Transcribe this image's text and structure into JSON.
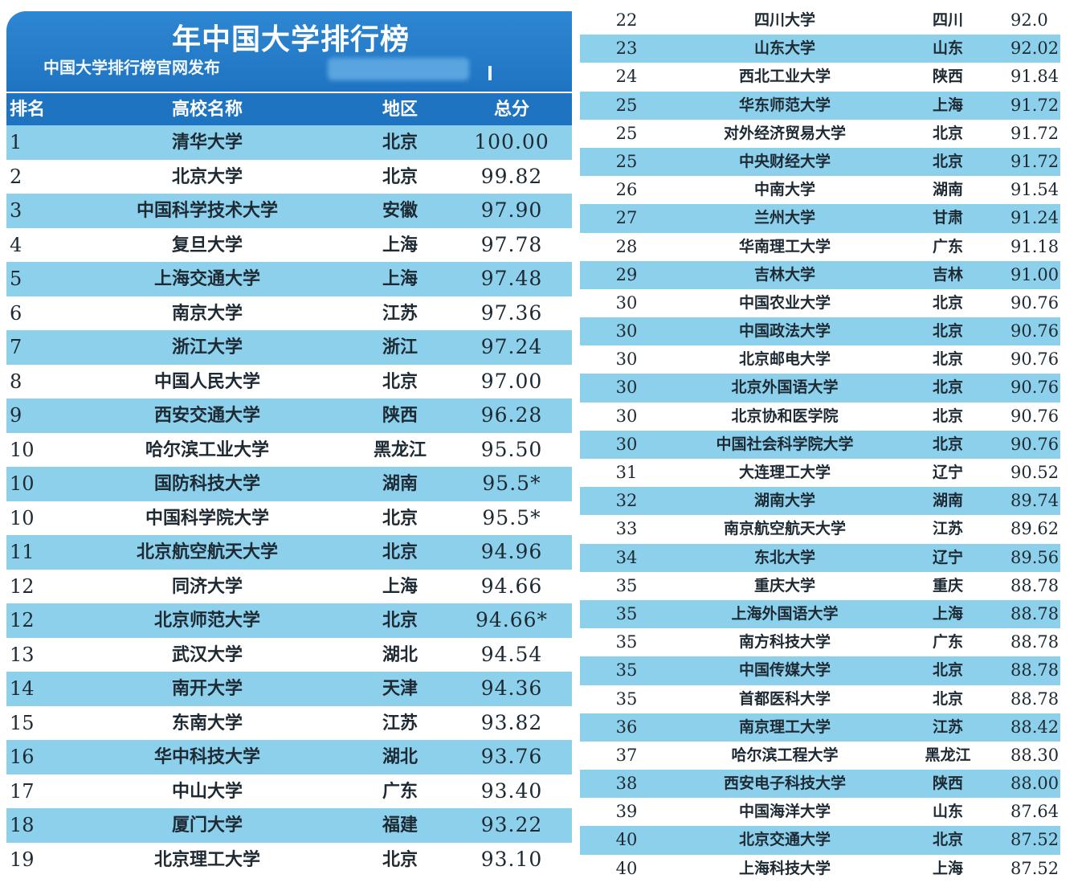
{
  "banner": {
    "title": "年中国大学排行榜",
    "subtitle": "中国大学排行榜官网发布"
  },
  "table_header": {
    "rank": "排名",
    "name": "高校名称",
    "region": "地区",
    "score": "总分"
  },
  "left_rows": [
    {
      "rank": "1",
      "name": "清华大学",
      "region": "北京",
      "score": "100.00"
    },
    {
      "rank": "2",
      "name": "北京大学",
      "region": "北京",
      "score": "99.82"
    },
    {
      "rank": "3",
      "name": "中国科学技术大学",
      "region": "安徽",
      "score": "97.90"
    },
    {
      "rank": "4",
      "name": "复旦大学",
      "region": "上海",
      "score": "97.78"
    },
    {
      "rank": "5",
      "name": "上海交通大学",
      "region": "上海",
      "score": "97.48"
    },
    {
      "rank": "6",
      "name": "南京大学",
      "region": "江苏",
      "score": "97.36"
    },
    {
      "rank": "7",
      "name": "浙江大学",
      "region": "浙江",
      "score": "97.24"
    },
    {
      "rank": "8",
      "name": "中国人民大学",
      "region": "北京",
      "score": "97.00"
    },
    {
      "rank": "9",
      "name": "西安交通大学",
      "region": "陕西",
      "score": "96.28"
    },
    {
      "rank": "10",
      "name": "哈尔滨工业大学",
      "region": "黑龙江",
      "score": "95.50"
    },
    {
      "rank": "10",
      "name": "国防科技大学",
      "region": "湖南",
      "score": "95.5*"
    },
    {
      "rank": "10",
      "name": "中国科学院大学",
      "region": "北京",
      "score": "95.5*"
    },
    {
      "rank": "11",
      "name": "北京航空航天大学",
      "region": "北京",
      "score": "94.96"
    },
    {
      "rank": "12",
      "name": "同济大学",
      "region": "上海",
      "score": "94.66"
    },
    {
      "rank": "12",
      "name": "北京师范大学",
      "region": "北京",
      "score": "94.66*"
    },
    {
      "rank": "13",
      "name": "武汉大学",
      "region": "湖北",
      "score": "94.54"
    },
    {
      "rank": "14",
      "name": "南开大学",
      "region": "天津",
      "score": "94.36"
    },
    {
      "rank": "15",
      "name": "东南大学",
      "region": "江苏",
      "score": "93.82"
    },
    {
      "rank": "16",
      "name": "华中科技大学",
      "region": "湖北",
      "score": "93.76"
    },
    {
      "rank": "17",
      "name": "中山大学",
      "region": "广东",
      "score": "93.40"
    },
    {
      "rank": "18",
      "name": "厦门大学",
      "region": "福建",
      "score": "93.22"
    },
    {
      "rank": "19",
      "name": "北京理工大学",
      "region": "北京",
      "score": "93.10"
    }
  ],
  "right_rows": [
    {
      "rank": "22",
      "name": "四川大学",
      "region": "四川",
      "score": "92.0"
    },
    {
      "rank": "23",
      "name": "山东大学",
      "region": "山东",
      "score": "92.02"
    },
    {
      "rank": "24",
      "name": "西北工业大学",
      "region": "陕西",
      "score": "91.84"
    },
    {
      "rank": "25",
      "name": "华东师范大学",
      "region": "上海",
      "score": "91.72"
    },
    {
      "rank": "25",
      "name": "对外经济贸易大学",
      "region": "北京",
      "score": "91.72"
    },
    {
      "rank": "25",
      "name": "中央财经大学",
      "region": "北京",
      "score": "91.72"
    },
    {
      "rank": "26",
      "name": "中南大学",
      "region": "湖南",
      "score": "91.54"
    },
    {
      "rank": "27",
      "name": "兰州大学",
      "region": "甘肃",
      "score": "91.24"
    },
    {
      "rank": "28",
      "name": "华南理工大学",
      "region": "广东",
      "score": "91.18"
    },
    {
      "rank": "29",
      "name": "吉林大学",
      "region": "吉林",
      "score": "91.00"
    },
    {
      "rank": "30",
      "name": "中国农业大学",
      "region": "北京",
      "score": "90.76"
    },
    {
      "rank": "30",
      "name": "中国政法大学",
      "region": "北京",
      "score": "90.76"
    },
    {
      "rank": "30",
      "name": "北京邮电大学",
      "region": "北京",
      "score": "90.76"
    },
    {
      "rank": "30",
      "name": "北京外国语大学",
      "region": "北京",
      "score": "90.76"
    },
    {
      "rank": "30",
      "name": "北京协和医学院",
      "region": "北京",
      "score": "90.76"
    },
    {
      "rank": "30",
      "name": "中国社会科学院大学",
      "region": "北京",
      "score": "90.76"
    },
    {
      "rank": "31",
      "name": "大连理工大学",
      "region": "辽宁",
      "score": "90.52"
    },
    {
      "rank": "32",
      "name": "湖南大学",
      "region": "湖南",
      "score": "89.74"
    },
    {
      "rank": "33",
      "name": "南京航空航天大学",
      "region": "江苏",
      "score": "89.62"
    },
    {
      "rank": "34",
      "name": "东北大学",
      "region": "辽宁",
      "score": "89.56"
    },
    {
      "rank": "35",
      "name": "重庆大学",
      "region": "重庆",
      "score": "88.78"
    },
    {
      "rank": "35",
      "name": "上海外国语大学",
      "region": "上海",
      "score": "88.78"
    },
    {
      "rank": "35",
      "name": "南方科技大学",
      "region": "广东",
      "score": "88.78"
    },
    {
      "rank": "35",
      "name": "中国传媒大学",
      "region": "北京",
      "score": "88.78"
    },
    {
      "rank": "35",
      "name": "首都医科大学",
      "region": "北京",
      "score": "88.78"
    },
    {
      "rank": "36",
      "name": "南京理工大学",
      "region": "江苏",
      "score": "88.42"
    },
    {
      "rank": "37",
      "name": "哈尔滨工程大学",
      "region": "黑龙江",
      "score": "88.30"
    },
    {
      "rank": "38",
      "name": "西安电子科技大学",
      "region": "陕西",
      "score": "88.00"
    },
    {
      "rank": "39",
      "name": "中国海洋大学",
      "region": "山东",
      "score": "87.64"
    },
    {
      "rank": "40",
      "name": "北京交通大学",
      "region": "北京",
      "score": "87.52"
    },
    {
      "rank": "40",
      "name": "上海科技大学",
      "region": "上海",
      "score": "87.52"
    }
  ]
}
